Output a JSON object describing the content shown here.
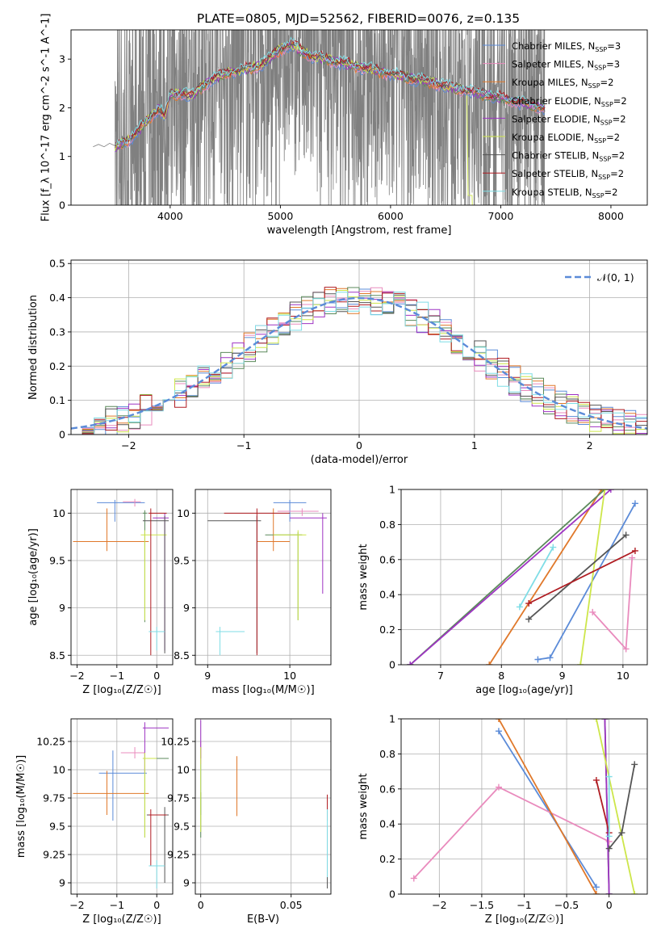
{
  "figure": {
    "title": "PLATE=0805, MJD=52562, FIBERID=0076, z=0.135"
  },
  "colors": {
    "Chabrier MILES": "#5b8bd8",
    "Salpeter MILES": "#e98bbd",
    "Kroupa MILES": "#e0782a",
    "Chabrier ELODIE": "#5b8a5b",
    "Salpeter ELODIE": "#9e33c3",
    "Kroupa ELODIE": "#cde64a",
    "Chabrier STELIB": "#555555",
    "Salpeter STELIB": "#b01c22",
    "Kroupa STELIB": "#7fdde6",
    "data": "#808080",
    "gaussian": "#5b8bd8"
  },
  "chart_data": [
    {
      "id": "spectrum",
      "type": "line",
      "title": "PLATE=0805, MJD=52562, FIBERID=0076, z=0.135",
      "xlabel": "wavelength [Angstrom, rest frame]",
      "ylabel": "Flux [f_λ 10^-17 erg cm^-2 s^-1 A^-1]",
      "xlim": [
        3100,
        8330
      ],
      "ylim": [
        0,
        3.6
      ],
      "xticks": [
        4000,
        5000,
        6000,
        7000,
        8000
      ],
      "yticks": [
        0,
        1,
        2,
        3
      ],
      "legend": "top-right",
      "grid": false,
      "legend_labels": [
        {
          "model": "Chabrier MILES",
          "label": "Chabrier MILES, N",
          "sub": "SSP",
          "tail": "=3"
        },
        {
          "model": "Salpeter MILES",
          "label": "Salpeter MILES, N",
          "sub": "SSP",
          "tail": "=3"
        },
        {
          "model": "Kroupa MILES",
          "label": "Kroupa MILES, N",
          "sub": "SSP",
          "tail": "=2"
        },
        {
          "model": "Chabrier ELODIE",
          "label": "Chabrier ELODIE, N",
          "sub": "SSP",
          "tail": "=2"
        },
        {
          "model": "Salpeter ELODIE",
          "label": "Salpeter ELODIE, N",
          "sub": "SSP",
          "tail": "=2"
        },
        {
          "model": "Kroupa ELODIE",
          "label": "Kroupa ELODIE, N",
          "sub": "SSP",
          "tail": "=2"
        },
        {
          "model": "Chabrier STELIB",
          "label": "Chabrier STELIB, N",
          "sub": "SSP",
          "tail": "=2"
        },
        {
          "model": "Salpeter STELIB",
          "label": "Salpeter STELIB, N",
          "sub": "SSP",
          "tail": "=2"
        },
        {
          "model": "Kroupa STELIB",
          "label": "Kroupa STELIB, N",
          "sub": "SSP",
          "tail": "=2"
        }
      ],
      "continuum": {
        "x": [
          3300,
          3400,
          3500,
          3600,
          3700,
          3800,
          3900,
          3950,
          4000,
          4100,
          4200,
          4300,
          4400,
          4500,
          4600,
          4700,
          4800,
          4900,
          5000,
          5100,
          5200,
          5300,
          5400,
          5500,
          5600,
          5700,
          5800,
          5900,
          6000,
          6100,
          6200,
          6300,
          6400,
          6500,
          6600,
          6700,
          6800,
          6900,
          7000,
          7100,
          7200,
          7300,
          7400
        ],
        "y": [
          1.22,
          1.25,
          1.2,
          1.3,
          1.5,
          1.75,
          2.0,
          1.8,
          2.25,
          2.3,
          2.25,
          2.45,
          2.6,
          2.7,
          2.75,
          2.8,
          2.85,
          3.0,
          3.2,
          3.3,
          3.15,
          3.05,
          3.0,
          2.95,
          2.9,
          2.85,
          2.8,
          2.75,
          2.7,
          2.65,
          2.6,
          2.55,
          2.5,
          2.45,
          2.4,
          2.35,
          2.3,
          2.25,
          2.2,
          2.15,
          2.1,
          2.05,
          2.0
        ]
      },
      "data_line": {
        "x": [
          3300,
          3350,
          3400,
          3450,
          3500
        ],
        "y": [
          1.2,
          1.25,
          1.2,
          1.27,
          1.22
        ]
      },
      "noise_range": [
        3500,
        7400
      ]
    },
    {
      "id": "residual_hist",
      "type": "line",
      "xlabel": "(data-model)/error",
      "ylabel": "Normed distribution",
      "xlim": [
        -2.5,
        2.5
      ],
      "ylim": [
        0,
        0.51
      ],
      "xticks": [
        -2,
        -1,
        0,
        1,
        2
      ],
      "yticks": [
        0.0,
        0.1,
        0.2,
        0.3,
        0.4,
        0.5
      ],
      "grid": true,
      "legend": "top-right",
      "legend_label": "𝒩(0, 1)",
      "bin_width": 0.1
    },
    {
      "id": "age_vs_Z",
      "type": "scatter",
      "xlabel": "Z [log₁₀(Z/Z☉)]",
      "ylabel": "age  [log₁₀(age/yr)]",
      "xlim": [
        -2.15,
        0.4
      ],
      "ylim": [
        8.4,
        10.25
      ],
      "xticks": [
        -2,
        -1,
        0
      ],
      "yticks": [
        8.5,
        9.0,
        9.5,
        10.0
      ],
      "grid": true,
      "points": [
        {
          "model": "Chabrier MILES",
          "x": -1.05,
          "y": 10.11,
          "xerr": [
            0.45,
            0.75
          ],
          "yerr": [
            0.2,
            0.03
          ]
        },
        {
          "model": "Salpeter MILES",
          "x": -0.55,
          "y": 10.12,
          "xerr": [
            0.3,
            0.15
          ],
          "yerr": [
            0.05,
            0.03
          ]
        },
        {
          "model": "Kroupa MILES",
          "x": -1.25,
          "y": 9.7,
          "xerr": [
            0.85,
            1.05
          ],
          "yerr": [
            0.1,
            0.35
          ]
        },
        {
          "model": "Chabrier ELODIE",
          "x": -0.3,
          "y": 10.0,
          "xerr": [
            0.05,
            0.05
          ],
          "yerr": [
            1.15,
            0.03
          ]
        },
        {
          "model": "Salpeter ELODIE",
          "x": 0.2,
          "y": 9.95,
          "xerr": [
            0.3,
            0.1
          ],
          "yerr": [
            1.4,
            0.05
          ]
        },
        {
          "model": "Kroupa ELODIE",
          "x": -0.3,
          "y": 9.77,
          "xerr": [
            0.1,
            0.55
          ],
          "yerr": [
            0.9,
            0.05
          ]
        },
        {
          "model": "Chabrier STELIB",
          "x": 0.2,
          "y": 9.92,
          "xerr": [
            0.55,
            0.1
          ],
          "yerr": [
            1.4,
            0.05
          ]
        },
        {
          "model": "Salpeter STELIB",
          "x": -0.15,
          "y": 10.0,
          "xerr": [
            0.05,
            0.4
          ],
          "yerr": [
            1.5,
            0.05
          ]
        },
        {
          "model": "Kroupa STELIB",
          "x": 0.0,
          "y": 8.75,
          "xerr": [
            0.2,
            0.2
          ],
          "yerr": [
            0.2,
            0.05
          ]
        }
      ]
    },
    {
      "id": "age_vs_mass",
      "type": "scatter",
      "xlabel": "mass [log₁₀(M/M☉)]",
      "ylabel": "",
      "xlim": [
        8.85,
        10.5
      ],
      "ylim": [
        8.4,
        10.25
      ],
      "xticks": [
        9,
        10
      ],
      "yticks": [
        8.5,
        9.0,
        9.5,
        10.0
      ],
      "grid": true,
      "points": [
        {
          "model": "Chabrier MILES",
          "x": 10.0,
          "y": 10.11,
          "xerr": [
            0.2,
            0.2
          ],
          "yerr": [
            0.2,
            0.03
          ]
        },
        {
          "model": "Salpeter MILES",
          "x": 10.15,
          "y": 10.02,
          "xerr": [
            0.3,
            0.2
          ],
          "yerr": [
            0.05,
            0.03
          ]
        },
        {
          "model": "Kroupa MILES",
          "x": 9.8,
          "y": 9.7,
          "xerr": [
            0.2,
            0.2
          ],
          "yerr": [
            0.1,
            0.35
          ]
        },
        {
          "model": "Chabrier ELODIE",
          "x": 10.1,
          "y": 9.77,
          "xerr": [
            0.4,
            0.05
          ],
          "yerr": [
            0.9,
            0.03
          ]
        },
        {
          "model": "Salpeter ELODIE",
          "x": 10.4,
          "y": 9.95,
          "xerr": [
            0.4,
            0.05
          ],
          "yerr": [
            0.8,
            0.05
          ]
        },
        {
          "model": "Kroupa ELODIE",
          "x": 10.1,
          "y": 9.77,
          "xerr": [
            0.3,
            0.1
          ],
          "yerr": [
            0.9,
            0.05
          ]
        },
        {
          "model": "Chabrier STELIB",
          "x": 9.6,
          "y": 9.92,
          "xerr": [
            0.6,
            0.05
          ],
          "yerr": [
            1.4,
            0.05
          ]
        },
        {
          "model": "Salpeter STELIB",
          "x": 9.6,
          "y": 10.0,
          "xerr": [
            0.4,
            0.4
          ],
          "yerr": [
            1.5,
            0.05
          ]
        },
        {
          "model": "Kroupa STELIB",
          "x": 9.15,
          "y": 8.75,
          "xerr": [
            0.05,
            0.3
          ],
          "yerr": [
            0.25,
            0.05
          ]
        }
      ]
    },
    {
      "id": "massweight_vs_age",
      "type": "line",
      "xlabel": "age  [log₁₀(age/yr)]",
      "ylabel": "mass weight",
      "xlim": [
        6.35,
        10.4
      ],
      "ylim": [
        0,
        1.0
      ],
      "xticks": [
        7,
        8,
        9,
        10
      ],
      "yticks": [
        0.0,
        0.2,
        0.4,
        0.6,
        0.8,
        1.0
      ],
      "grid": true,
      "series": [
        {
          "model": "Chabrier MILES",
          "x": [
            8.6,
            8.8,
            10.2
          ],
          "y": [
            0.03,
            0.04,
            0.92
          ]
        },
        {
          "model": "Salpeter MILES",
          "x": [
            9.5,
            10.05,
            10.15
          ],
          "y": [
            0.3,
            0.09,
            0.61
          ]
        },
        {
          "model": "Kroupa MILES",
          "x": [
            7.8,
            9.65
          ],
          "y": [
            0.0,
            1.0
          ]
        },
        {
          "model": "Chabrier ELODIE",
          "x": [
            6.5,
            9.7
          ],
          "y": [
            0.0,
            1.0
          ]
        },
        {
          "model": "Salpeter ELODIE",
          "x": [
            6.5,
            9.8
          ],
          "y": [
            0.0,
            1.0
          ]
        },
        {
          "model": "Kroupa ELODIE",
          "x": [
            9.3,
            9.7
          ],
          "y": [
            0.0,
            1.0
          ]
        },
        {
          "model": "Chabrier STELIB",
          "x": [
            8.45,
            10.05
          ],
          "y": [
            0.26,
            0.74
          ]
        },
        {
          "model": "Salpeter STELIB",
          "x": [
            8.45,
            10.2
          ],
          "y": [
            0.35,
            0.65
          ]
        },
        {
          "model": "Kroupa STELIB",
          "x": [
            8.3,
            8.85
          ],
          "y": [
            0.33,
            0.67
          ]
        }
      ]
    },
    {
      "id": "mass_vs_Z",
      "type": "scatter",
      "xlabel": "Z [log₁₀(Z/Z☉)]",
      "ylabel": "mass [log₁₀(M/M☉)]",
      "xlim": [
        -2.15,
        0.4
      ],
      "ylim": [
        8.9,
        10.45
      ],
      "xticks": [
        -2,
        -1,
        0
      ],
      "yticks": [
        9.0,
        9.25,
        9.5,
        9.75,
        10.0,
        10.25
      ],
      "grid": true,
      "points": [
        {
          "model": "Chabrier MILES",
          "x": -1.1,
          "y": 9.97,
          "xerr": [
            0.35,
            0.85
          ],
          "yerr": [
            0.42,
            0.2
          ]
        },
        {
          "model": "Salpeter MILES",
          "x": -0.55,
          "y": 10.15,
          "xerr": [
            0.35,
            0.25
          ],
          "yerr": [
            0.05,
            0.05
          ]
        },
        {
          "model": "Kroupa MILES",
          "x": -1.25,
          "y": 9.79,
          "xerr": [
            0.85,
            1.05
          ],
          "yerr": [
            0.19,
            0.2
          ]
        },
        {
          "model": "Chabrier ELODIE",
          "x": -0.3,
          "y": 10.1,
          "xerr": [
            0.05,
            0.6
          ],
          "yerr": [
            0.7,
            0.05
          ]
        },
        {
          "model": "Salpeter ELODIE",
          "x": -0.3,
          "y": 10.37,
          "xerr": [
            0.05,
            0.6
          ],
          "yerr": [
            0.4,
            0.05
          ]
        },
        {
          "model": "Kroupa ELODIE",
          "x": -0.3,
          "y": 10.1,
          "xerr": [
            0.05,
            0.3
          ],
          "yerr": [
            0.7,
            0.05
          ]
        },
        {
          "model": "Chabrier STELIB",
          "x": 0.2,
          "y": 9.6,
          "xerr": [
            0.45,
            0.1
          ],
          "yerr": [
            0.6,
            0.07
          ]
        },
        {
          "model": "Salpeter STELIB",
          "x": -0.15,
          "y": 9.6,
          "xerr": [
            0.05,
            0.4
          ],
          "yerr": [
            0.45,
            0.05
          ]
        },
        {
          "model": "Kroupa STELIB",
          "x": 0.0,
          "y": 9.15,
          "xerr": [
            0.2,
            0.2
          ],
          "yerr": [
            0.2,
            0.05
          ]
        }
      ]
    },
    {
      "id": "mass_vs_EBV",
      "type": "scatter",
      "xlabel": "E(B-V)",
      "ylabel": "",
      "xlim": [
        -0.003,
        0.072
      ],
      "ylim": [
        8.9,
        10.45
      ],
      "xticks": [
        0.0,
        0.05
      ],
      "yticks": [
        9.0,
        9.25,
        9.5,
        9.75,
        10.0,
        10.25
      ],
      "grid": true,
      "points": [
        {
          "model": "Chabrier MILES",
          "x": 0.0,
          "y": 10.0,
          "xerr": [
            0,
            0
          ],
          "yerr": [
            0.4,
            0.2
          ]
        },
        {
          "model": "Salpeter MILES",
          "x": 0.0,
          "y": 10.15,
          "xerr": [
            0,
            0
          ],
          "yerr": [
            0.1,
            0.1
          ]
        },
        {
          "model": "Kroupa MILES",
          "x": 0.02,
          "y": 9.85,
          "xerr": [
            0,
            0
          ],
          "yerr": [
            0.26,
            0.27
          ]
        },
        {
          "model": "Chabrier ELODIE",
          "x": 0.0,
          "y": 9.6,
          "xerr": [
            0,
            0
          ],
          "yerr": [
            0.2,
            0.2
          ]
        },
        {
          "model": "Salpeter ELODIE",
          "x": 0.0,
          "y": 10.3,
          "xerr": [
            0,
            0
          ],
          "yerr": [
            0.2,
            0.14
          ]
        },
        {
          "model": "Kroupa ELODIE",
          "x": 0.0,
          "y": 9.9,
          "xerr": [
            0,
            0
          ],
          "yerr": [
            0.45,
            0.3
          ]
        },
        {
          "model": "Chabrier STELIB",
          "x": 0.07,
          "y": 9.2,
          "xerr": [
            0,
            0
          ],
          "yerr": [
            0.25,
            0.3
          ]
        },
        {
          "model": "Salpeter STELIB",
          "x": 0.07,
          "y": 9.65,
          "xerr": [
            0,
            0
          ],
          "yerr": [
            0.1,
            0.13
          ]
        },
        {
          "model": "Kroupa STELIB",
          "x": 0.07,
          "y": 9.3,
          "xerr": [
            0,
            0
          ],
          "yerr": [
            0.25,
            0.35
          ]
        }
      ]
    },
    {
      "id": "massweight_vs_Z",
      "type": "line",
      "xlabel": "Z [log₁₀(Z/Z☉)]",
      "ylabel": "mass weight",
      "xlim": [
        -2.45,
        0.45
      ],
      "ylim": [
        0,
        1.0
      ],
      "xticks": [
        -2.0,
        -1.5,
        -1.0,
        -0.5,
        0.0
      ],
      "yticks": [
        0.0,
        0.2,
        0.4,
        0.6,
        0.8,
        1.0
      ],
      "grid": true,
      "series": [
        {
          "model": "Chabrier MILES",
          "x": [
            -1.3,
            -0.15
          ],
          "y": [
            0.93,
            0.04
          ]
        },
        {
          "model": "Salpeter MILES",
          "x": [
            -2.3,
            -1.3,
            0.0
          ],
          "y": [
            0.09,
            0.61,
            0.3
          ]
        },
        {
          "model": "Kroupa MILES",
          "x": [
            -1.3,
            -0.15
          ],
          "y": [
            1.0,
            0.0
          ]
        },
        {
          "model": "Chabrier ELODIE",
          "x": [
            -0.05,
            0.0
          ],
          "y": [
            1.0,
            0.0
          ]
        },
        {
          "model": "Salpeter ELODIE",
          "x": [
            -0.05,
            0.0
          ],
          "y": [
            1.0,
            0.0
          ]
        },
        {
          "model": "Kroupa ELODIE",
          "x": [
            -0.15,
            0.3
          ],
          "y": [
            1.0,
            0.0
          ]
        },
        {
          "model": "Chabrier STELIB",
          "x": [
            0.0,
            0.15,
            0.3
          ],
          "y": [
            0.26,
            0.35,
            0.74
          ]
        },
        {
          "model": "Salpeter STELIB",
          "x": [
            -0.15,
            0.0
          ],
          "y": [
            0.65,
            0.35
          ]
        },
        {
          "model": "Kroupa STELIB",
          "x": [
            0.0,
            0.0
          ],
          "y": [
            0.33,
            0.67
          ]
        }
      ]
    }
  ]
}
